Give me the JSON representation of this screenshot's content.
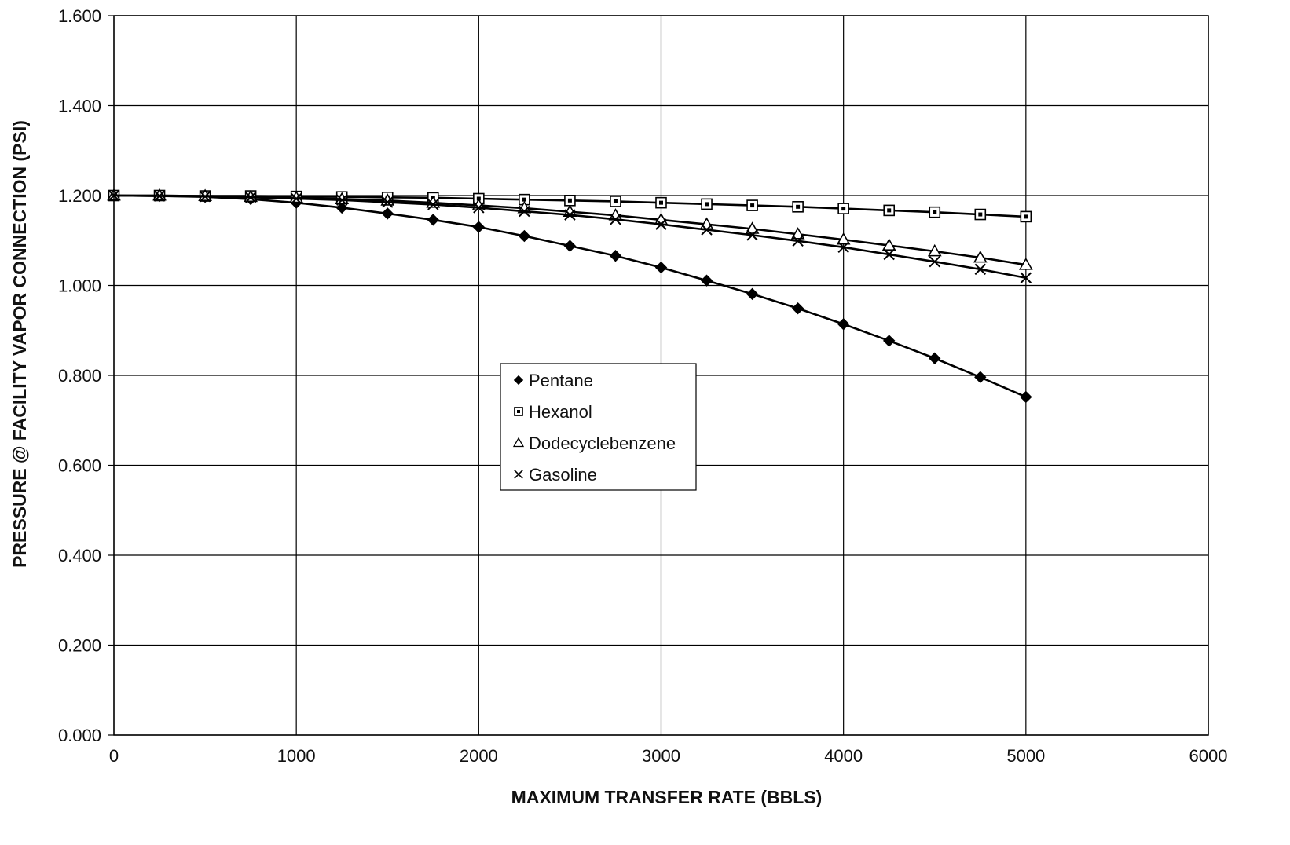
{
  "chart_data": {
    "type": "line",
    "title": "",
    "xlabel": "MAXIMUM TRANSFER RATE (BBLS)",
    "ylabel": "PRESSURE @ FACILITY VAPOR CONNECTION (PSI)",
    "xlim": [
      0,
      6000
    ],
    "ylim": [
      0,
      1.6
    ],
    "x_ticks": [
      "0",
      "1000",
      "2000",
      "3000",
      "4000",
      "5000",
      "6000"
    ],
    "y_ticks": [
      "0.000",
      "0.200",
      "0.400",
      "0.600",
      "0.800",
      "1.000",
      "1.200",
      "1.400",
      "1.600"
    ],
    "grid": true,
    "legend_position": "center",
    "x": [
      0,
      250,
      500,
      750,
      1000,
      1250,
      1500,
      1750,
      2000,
      2250,
      2500,
      2750,
      3000,
      3250,
      3500,
      3750,
      4000,
      4250,
      4500,
      4750,
      5000
    ],
    "series": [
      {
        "name": "Pentane",
        "marker": "diamond-filled",
        "values": [
          1.2,
          1.199,
          1.197,
          1.192,
          1.184,
          1.173,
          1.16,
          1.146,
          1.13,
          1.11,
          1.088,
          1.066,
          1.04,
          1.011,
          0.981,
          0.949,
          0.914,
          0.877,
          0.838,
          0.796,
          0.752
        ]
      },
      {
        "name": "Hexanol",
        "marker": "square-dotted",
        "values": [
          1.2,
          1.2,
          1.199,
          1.199,
          1.198,
          1.197,
          1.196,
          1.195,
          1.193,
          1.191,
          1.189,
          1.187,
          1.184,
          1.181,
          1.178,
          1.175,
          1.171,
          1.167,
          1.163,
          1.158,
          1.153
        ]
      },
      {
        "name": "Dodecyclebenzene",
        "marker": "triangle-open",
        "values": [
          1.2,
          1.2,
          1.199,
          1.197,
          1.195,
          1.192,
          1.189,
          1.184,
          1.178,
          1.172,
          1.164,
          1.156,
          1.146,
          1.136,
          1.126,
          1.114,
          1.102,
          1.089,
          1.076,
          1.062,
          1.046
        ]
      },
      {
        "name": "Gasoline",
        "marker": "x",
        "values": [
          1.2,
          1.199,
          1.198,
          1.196,
          1.193,
          1.19,
          1.185,
          1.18,
          1.173,
          1.165,
          1.157,
          1.147,
          1.136,
          1.124,
          1.112,
          1.099,
          1.085,
          1.069,
          1.053,
          1.036,
          1.017
        ]
      }
    ]
  }
}
